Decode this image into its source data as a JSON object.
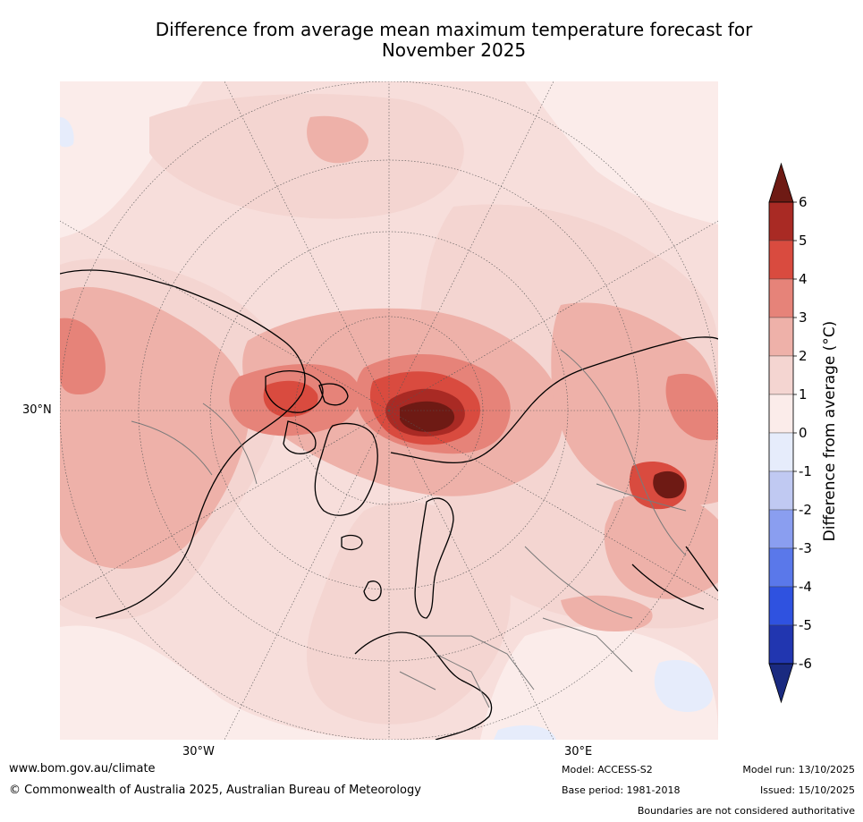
{
  "title": {
    "line1": "Difference from average mean maximum temperature forecast for",
    "line2": "November 2025"
  },
  "map": {
    "projection": "north-polar-stereographic",
    "lat_label": "30°N",
    "lon_labels": {
      "west": "30°W",
      "east": "30°E"
    },
    "colors": {
      "ocean_bg": "#f7dedb",
      "c0_1": "#fbecea",
      "c1_2": "#f4d5d1",
      "c2_3": "#eeb1a9",
      "c3_4": "#e68379",
      "c4_5": "#d94b3f",
      "c5_6": "#a92a24",
      "c6p": "#6e1a14",
      "neg0_1": "#e6ecfb",
      "coast": "#000000",
      "border": "#7a7a7a",
      "grid": "#555555"
    }
  },
  "colorbar": {
    "label": "Difference from average (°C)",
    "ticks": [
      "6",
      "5",
      "4",
      "3",
      "2",
      "1",
      "0",
      "-1",
      "-2",
      "-3",
      "-4",
      "-5",
      "-6"
    ],
    "colors_top_to_bottom": [
      "#6e1a14",
      "#a92a24",
      "#d94b3f",
      "#e68379",
      "#eeb1a9",
      "#f4d5d1",
      "#fbecea",
      "#e6ecfb",
      "#c0c9f2",
      "#8a9ef0",
      "#5a78ea",
      "#2f52e0",
      "#2136b0",
      "#1a2a80"
    ]
  },
  "footer": {
    "website": "www.bom.gov.au/climate",
    "copyright": "© Commonwealth of Australia 2025, Australian Bureau of Meteorology",
    "model": "Model: ACCESS-S2",
    "base_period": "Base period: 1981-2018",
    "model_run": "Model run: 13/10/2025",
    "issued": "Issued: 15/10/2025",
    "disclaimer": "Boundaries are not considered authoritative"
  }
}
